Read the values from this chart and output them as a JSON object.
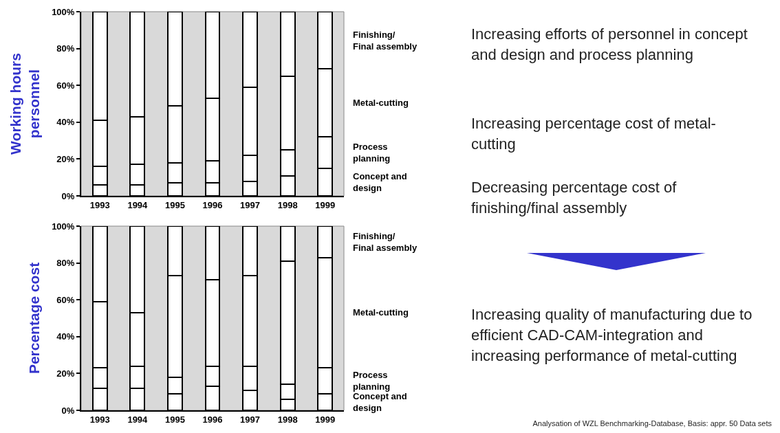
{
  "chart_data": [
    {
      "type": "bar",
      "stacked": true,
      "ylabel": "Working hours personnel",
      "categories": [
        "1993",
        "1994",
        "1995",
        "1996",
        "1997",
        "1998",
        "1999"
      ],
      "ylim": [
        0,
        100
      ],
      "yticks": [
        {
          "value": 0,
          "label": "0%"
        },
        {
          "value": 20,
          "label": "20%"
        },
        {
          "value": 40,
          "label": "40%"
        },
        {
          "value": 60,
          "label": "60%"
        },
        {
          "value": 80,
          "label": "80%"
        },
        {
          "value": 100,
          "label": "100%"
        }
      ],
      "grid": false,
      "legend": false,
      "series": [
        {
          "name": "Concept and design",
          "color": "#ffffff",
          "values": [
            6,
            6,
            7,
            7,
            8,
            11,
            15
          ]
        },
        {
          "name": "Process planning",
          "color": "#ffffff",
          "values": [
            10,
            11,
            11,
            12,
            14,
            14,
            17
          ]
        },
        {
          "name": "Metal-cutting",
          "color": "#ffffff",
          "values": [
            25,
            26,
            31,
            34,
            37,
            40,
            37
          ]
        },
        {
          "name": "Finishing/ Final assembly",
          "color": "#ffffff",
          "values": [
            59,
            57,
            51,
            47,
            41,
            35,
            31
          ]
        }
      ]
    },
    {
      "type": "bar",
      "stacked": true,
      "ylabel": "Percentage cost",
      "categories": [
        "1993",
        "1994",
        "1995",
        "1996",
        "1997",
        "1998",
        "1999"
      ],
      "ylim": [
        0,
        100
      ],
      "yticks": [
        {
          "value": 0,
          "label": "0%"
        },
        {
          "value": 20,
          "label": "20%"
        },
        {
          "value": 40,
          "label": "40%"
        },
        {
          "value": 60,
          "label": "60%"
        },
        {
          "value": 80,
          "label": "80%"
        },
        {
          "value": 100,
          "label": "100%"
        }
      ],
      "grid": false,
      "legend": false,
      "series": [
        {
          "name": "Concept and design",
          "color": "#ffffff",
          "values": [
            12,
            12,
            9,
            13,
            11,
            6,
            9
          ]
        },
        {
          "name": "Process planning",
          "color": "#ffffff",
          "values": [
            11,
            12,
            9,
            11,
            13,
            8,
            14
          ]
        },
        {
          "name": "Metal-cutting",
          "color": "#ffffff",
          "values": [
            36,
            29,
            55,
            47,
            49,
            67,
            60
          ]
        },
        {
          "name": "Finishing/ Final assembly",
          "color": "#ffffff",
          "values": [
            41,
            47,
            27,
            29,
            27,
            19,
            17
          ]
        }
      ]
    },
    {
      "type": "other",
      "annotations": [
        "Increasing efforts of personnel in concept and design and process planning",
        "Increasing percentage cost of metal-cutting",
        "Decreasing percentage cost of finishing/final assembly",
        "Increasing quality of manufacturing due to efficient CAD-CAM-integration and increasing performance of metal-cutting",
        "Analysation of  WZL Benchmarking-Database, Basis: appr. 50 Data sets"
      ]
    }
  ]
}
